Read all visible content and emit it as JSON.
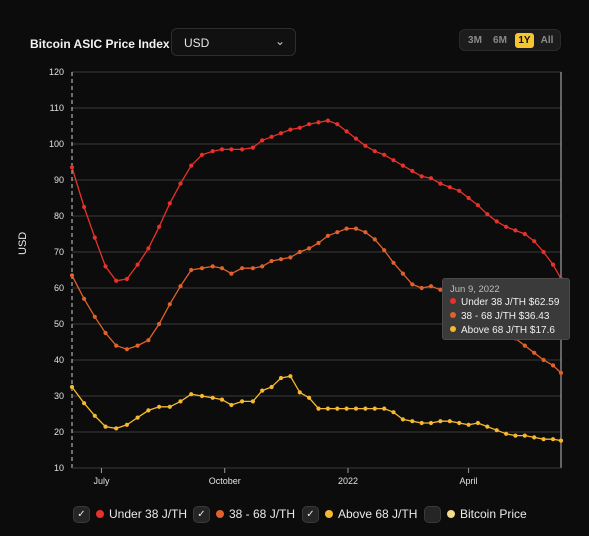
{
  "header": {
    "title": "Bitcoin ASIC Price Index",
    "currency_value": "USD",
    "ranges": [
      "3M",
      "6M",
      "1Y",
      "All"
    ],
    "active_range": "1Y"
  },
  "tooltip": {
    "date": "Jun 9, 2022",
    "rows": [
      {
        "text": "Under 38 J/TH $62.59",
        "color": "#e8312b"
      },
      {
        "text": "38 - 68 J/TH $36.43",
        "color": "#e0612a"
      },
      {
        "text": "Above 68 J/TH $17.6",
        "color": "#f5b82e"
      }
    ]
  },
  "legend": [
    {
      "label": "Under 38 J/TH",
      "color": "#e8312b",
      "checked": true
    },
    {
      "label": "38 - 68 J/TH",
      "color": "#e0612a",
      "checked": true
    },
    {
      "label": "Above 68 J/TH",
      "color": "#f5b82e",
      "checked": true
    },
    {
      "label": "Bitcoin Price",
      "color": "#f7d98a",
      "checked": false
    }
  ],
  "chart_data": {
    "type": "line",
    "ylabel": "USD",
    "ylim": [
      10,
      120
    ],
    "yticks": [
      10,
      20,
      30,
      40,
      50,
      60,
      70,
      80,
      90,
      100,
      110,
      120
    ],
    "xlim": [
      "2021-06-09",
      "2022-06-09"
    ],
    "xticks": [
      {
        "date": "2021-07-01",
        "label": "July"
      },
      {
        "date": "2021-10-01",
        "label": "October"
      },
      {
        "date": "2022-01-01",
        "label": "2022"
      },
      {
        "date": "2022-04-01",
        "label": "April"
      }
    ],
    "grid": true,
    "hover_date": "2022-06-09",
    "series": [
      {
        "name": "Under 38 J/TH",
        "color": "#e8312b",
        "points": [
          [
            "2021-06-09",
            93.5
          ],
          [
            "2021-06-18",
            82.5
          ],
          [
            "2021-06-26",
            74
          ],
          [
            "2021-07-04",
            66
          ],
          [
            "2021-07-12",
            62
          ],
          [
            "2021-07-20",
            62.5
          ],
          [
            "2021-07-28",
            66.5
          ],
          [
            "2021-08-05",
            71
          ],
          [
            "2021-08-13",
            77
          ],
          [
            "2021-08-21",
            83.5
          ],
          [
            "2021-08-29",
            89
          ],
          [
            "2021-09-06",
            94
          ],
          [
            "2021-09-14",
            97
          ],
          [
            "2021-09-22",
            98
          ],
          [
            "2021-09-29",
            98.5
          ],
          [
            "2021-10-06",
            98.5
          ],
          [
            "2021-10-14",
            98.5
          ],
          [
            "2021-10-22",
            99
          ],
          [
            "2021-10-29",
            101
          ],
          [
            "2021-11-05",
            102
          ],
          [
            "2021-11-12",
            103
          ],
          [
            "2021-11-19",
            104
          ],
          [
            "2021-11-26",
            104.5
          ],
          [
            "2021-12-03",
            105.5
          ],
          [
            "2021-12-10",
            106
          ],
          [
            "2021-12-17",
            106.5
          ],
          [
            "2021-12-24",
            105.5
          ],
          [
            "2021-12-31",
            103.5
          ],
          [
            "2022-01-07",
            101.5
          ],
          [
            "2022-01-14",
            99.5
          ],
          [
            "2022-01-21",
            98
          ],
          [
            "2022-01-28",
            97
          ],
          [
            "2022-02-04",
            95.5
          ],
          [
            "2022-02-11",
            94
          ],
          [
            "2022-02-18",
            92.5
          ],
          [
            "2022-02-25",
            91
          ],
          [
            "2022-03-04",
            90.5
          ],
          [
            "2022-03-11",
            89
          ],
          [
            "2022-03-18",
            88
          ],
          [
            "2022-03-25",
            87
          ],
          [
            "2022-04-01",
            85
          ],
          [
            "2022-04-08",
            83
          ],
          [
            "2022-04-15",
            80.5
          ],
          [
            "2022-04-22",
            78.5
          ],
          [
            "2022-04-29",
            77
          ],
          [
            "2022-05-06",
            76
          ],
          [
            "2022-05-13",
            75
          ],
          [
            "2022-05-20",
            73
          ],
          [
            "2022-05-27",
            70
          ],
          [
            "2022-06-03",
            66.5
          ],
          [
            "2022-06-09",
            62.59
          ]
        ]
      },
      {
        "name": "38 - 68 J/TH",
        "color": "#e0612a",
        "points": [
          [
            "2021-06-09",
            63.5
          ],
          [
            "2021-06-18",
            57
          ],
          [
            "2021-06-26",
            52
          ],
          [
            "2021-07-04",
            47.5
          ],
          [
            "2021-07-12",
            44
          ],
          [
            "2021-07-20",
            43
          ],
          [
            "2021-07-28",
            44
          ],
          [
            "2021-08-05",
            45.5
          ],
          [
            "2021-08-13",
            50
          ],
          [
            "2021-08-21",
            55.5
          ],
          [
            "2021-08-29",
            60.5
          ],
          [
            "2021-09-06",
            65
          ],
          [
            "2021-09-14",
            65.5
          ],
          [
            "2021-09-22",
            66
          ],
          [
            "2021-09-29",
            65.5
          ],
          [
            "2021-10-06",
            64
          ],
          [
            "2021-10-14",
            65.5
          ],
          [
            "2021-10-22",
            65.5
          ],
          [
            "2021-10-29",
            66
          ],
          [
            "2021-11-05",
            67.5
          ],
          [
            "2021-11-12",
            68
          ],
          [
            "2021-11-19",
            68.5
          ],
          [
            "2021-11-26",
            70
          ],
          [
            "2021-12-03",
            71
          ],
          [
            "2021-12-10",
            72.5
          ],
          [
            "2021-12-17",
            74.5
          ],
          [
            "2021-12-24",
            75.5
          ],
          [
            "2021-12-31",
            76.5
          ],
          [
            "2022-01-07",
            76.5
          ],
          [
            "2022-01-14",
            75.5
          ],
          [
            "2022-01-21",
            73.5
          ],
          [
            "2022-01-28",
            70.5
          ],
          [
            "2022-02-04",
            67
          ],
          [
            "2022-02-11",
            64
          ],
          [
            "2022-02-18",
            61
          ],
          [
            "2022-02-25",
            60
          ],
          [
            "2022-03-04",
            60.5
          ],
          [
            "2022-03-11",
            59.5
          ],
          [
            "2022-03-18",
            58.5
          ],
          [
            "2022-03-25",
            57
          ],
          [
            "2022-04-01",
            55.5
          ],
          [
            "2022-04-08",
            53.5
          ],
          [
            "2022-04-15",
            51.5
          ],
          [
            "2022-04-22",
            49.5
          ],
          [
            "2022-04-29",
            47.5
          ],
          [
            "2022-05-06",
            46
          ],
          [
            "2022-05-13",
            44
          ],
          [
            "2022-05-20",
            42
          ],
          [
            "2022-05-27",
            40
          ],
          [
            "2022-06-03",
            38.5
          ],
          [
            "2022-06-09",
            36.43
          ]
        ]
      },
      {
        "name": "Above 68 J/TH",
        "color": "#f5b82e",
        "points": [
          [
            "2021-06-09",
            32.5
          ],
          [
            "2021-06-18",
            28
          ],
          [
            "2021-06-26",
            24.5
          ],
          [
            "2021-07-04",
            21.5
          ],
          [
            "2021-07-12",
            21
          ],
          [
            "2021-07-20",
            22
          ],
          [
            "2021-07-28",
            24
          ],
          [
            "2021-08-05",
            26
          ],
          [
            "2021-08-13",
            27
          ],
          [
            "2021-08-21",
            27
          ],
          [
            "2021-08-29",
            28.5
          ],
          [
            "2021-09-06",
            30.5
          ],
          [
            "2021-09-14",
            30
          ],
          [
            "2021-09-22",
            29.5
          ],
          [
            "2021-09-29",
            29
          ],
          [
            "2021-10-06",
            27.5
          ],
          [
            "2021-10-14",
            28.5
          ],
          [
            "2021-10-22",
            28.5
          ],
          [
            "2021-10-29",
            31.5
          ],
          [
            "2021-11-05",
            32.5
          ],
          [
            "2021-11-12",
            35
          ],
          [
            "2021-11-19",
            35.5
          ],
          [
            "2021-11-26",
            31
          ],
          [
            "2021-12-03",
            29.5
          ],
          [
            "2021-12-10",
            26.5
          ],
          [
            "2021-12-17",
            26.5
          ],
          [
            "2021-12-24",
            26.5
          ],
          [
            "2021-12-31",
            26.5
          ],
          [
            "2022-01-07",
            26.5
          ],
          [
            "2022-01-14",
            26.5
          ],
          [
            "2022-01-21",
            26.5
          ],
          [
            "2022-01-28",
            26.5
          ],
          [
            "2022-02-04",
            25.5
          ],
          [
            "2022-02-11",
            23.5
          ],
          [
            "2022-02-18",
            23
          ],
          [
            "2022-02-25",
            22.5
          ],
          [
            "2022-03-04",
            22.5
          ],
          [
            "2022-03-11",
            23
          ],
          [
            "2022-03-18",
            23
          ],
          [
            "2022-03-25",
            22.5
          ],
          [
            "2022-04-01",
            22
          ],
          [
            "2022-04-08",
            22.5
          ],
          [
            "2022-04-15",
            21.5
          ],
          [
            "2022-04-22",
            20.5
          ],
          [
            "2022-04-29",
            19.5
          ],
          [
            "2022-05-06",
            19
          ],
          [
            "2022-05-13",
            19
          ],
          [
            "2022-05-20",
            18.5
          ],
          [
            "2022-05-27",
            18
          ],
          [
            "2022-06-03",
            18
          ],
          [
            "2022-06-09",
            17.6
          ]
        ]
      }
    ]
  }
}
